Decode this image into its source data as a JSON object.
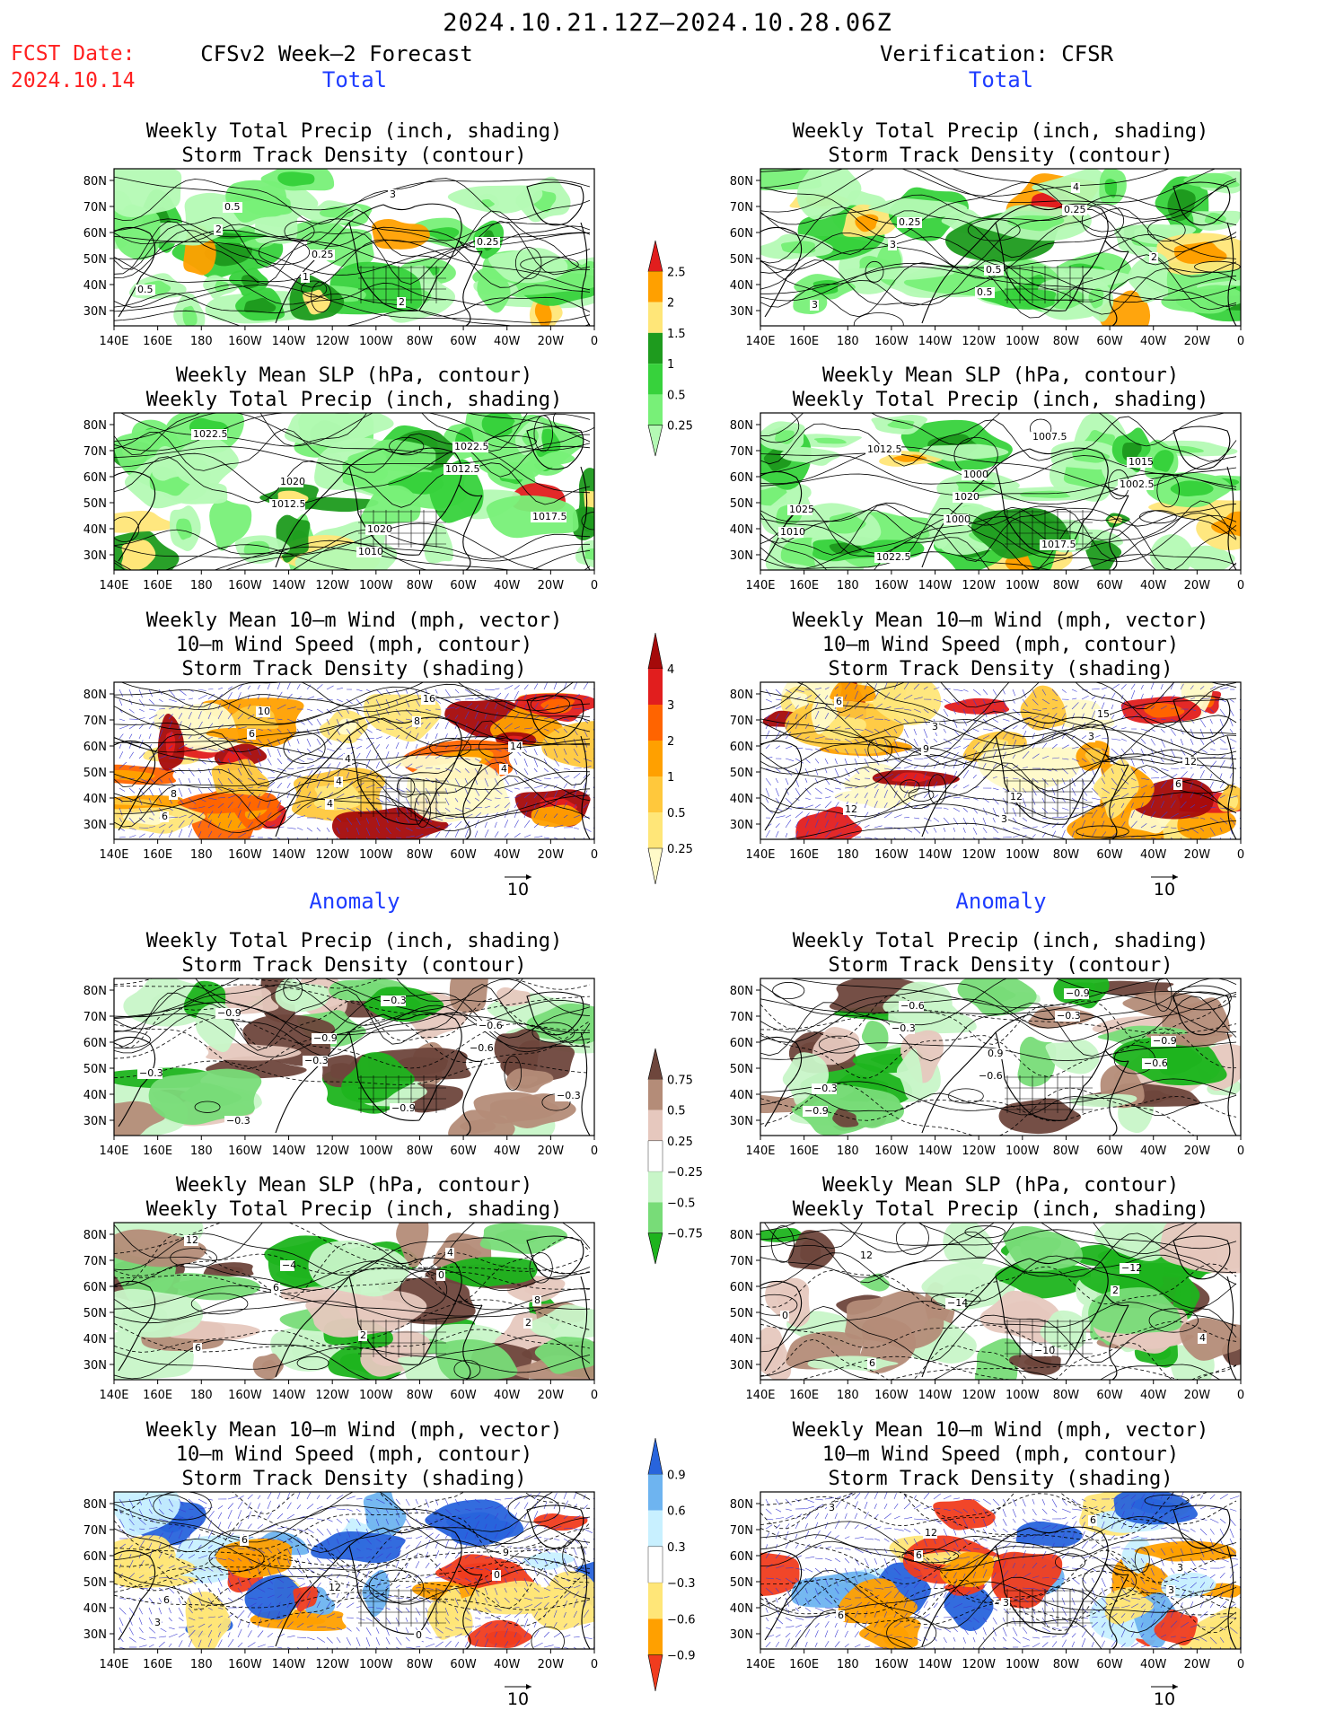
{
  "header": {
    "main_title": "2024.10.21.12Z–2024.10.28.06Z",
    "fcst_label": "FCST Date:",
    "fcst_date": "2024.10.14",
    "left_title": "CFSv2 Week–2 Forecast",
    "right_title": "Verification: CFSR"
  },
  "sections": {
    "total": "Total",
    "anomaly": "Anomaly"
  },
  "panel_titles": {
    "precip_storm": [
      "Weekly Total Precip (inch, shading)",
      "Storm Track Density (contour)"
    ],
    "slp_precip": [
      "Weekly Mean SLP (hPa, contour)",
      "Weekly Total Precip (inch, shading)"
    ],
    "wind_storm": [
      "Weekly Mean 10–m Wind (mph, vector)",
      "10–m Wind Speed (mph, contour)",
      "Storm Track Density (shading)"
    ]
  },
  "axes": {
    "lat_labels": [
      "80N",
      "70N",
      "60N",
      "50N",
      "40N",
      "30N"
    ],
    "lon_labels": [
      "140E",
      "160E",
      "180",
      "160W",
      "140W",
      "120W",
      "100W",
      "80W",
      "60W",
      "40W",
      "20W",
      "0"
    ]
  },
  "vector_ref": "10",
  "colorbars": {
    "precip_total": {
      "labels": [
        "0.25",
        "0.5",
        "1",
        "1.5",
        "2",
        "2.5"
      ],
      "colors": [
        "#b4fab4",
        "#78f078",
        "#37d23c",
        "#1e9b1e",
        "#ffe678",
        "#ffa000",
        "#e11e1e"
      ]
    },
    "storm_total": {
      "labels": [
        "0.25",
        "0.5",
        "1",
        "2",
        "3",
        "4"
      ],
      "colors": [
        "#fffac8",
        "#ffe678",
        "#ffc83c",
        "#ffa000",
        "#ff6400",
        "#e11e1e",
        "#a50a0a"
      ]
    },
    "precip_anom": {
      "labels": [
        "0.75",
        "0.5",
        "0.25",
        "−0.25",
        "−0.5",
        "−0.75"
      ],
      "colors": [
        "#1eb41e",
        "#78dc78",
        "#c8f5c8",
        "#ffffff",
        "#e6c8be",
        "#b48c78",
        "#6e463c"
      ]
    },
    "storm_anom": {
      "labels": [
        "0.9",
        "0.6",
        "0.3",
        "−0.3",
        "−0.6",
        "−0.9"
      ],
      "colors": [
        "#f03c1e",
        "#ffa000",
        "#ffe678",
        "#ffffff",
        "#c8f0ff",
        "#6eb4f0",
        "#2864dc"
      ]
    }
  },
  "contour_labels": {
    "fc_precip_total": [
      "2",
      "1",
      "3",
      "0.25",
      "0.5",
      "0.5",
      "0.25",
      "2"
    ],
    "ver_precip_total": [
      "3",
      "0.5",
      "0.25",
      "2",
      "3",
      "0.25",
      "0.5",
      "4"
    ],
    "fc_slp_total": [
      "1012.5",
      "1010",
      "1012.5",
      "1017.5",
      "1022.5",
      "1020",
      "1020",
      "1022.5"
    ],
    "ver_slp_total": [
      "1000",
      "1007.5",
      "1002.5",
      "1010",
      "1012.5",
      "1020",
      "1017.5",
      "1015",
      "1025",
      "1022.5",
      "1000"
    ],
    "fc_wind_total": [
      "4",
      "8",
      "4",
      "6",
      "6",
      "4",
      "16",
      "14",
      "8",
      "10",
      "4"
    ],
    "ver_wind_total": [
      "3",
      "3",
      "6",
      "6",
      "9",
      "12",
      "15",
      "12",
      "12",
      "3"
    ],
    "fc_precip_anom": [
      "−0.3",
      "−0.6",
      "−0.3",
      "−0.9",
      "−0.3",
      "−0.9",
      "−0.6",
      "−0.3",
      "−0.3",
      "−0.9"
    ],
    "ver_precip_anom": [
      "−0.3",
      "−0.6",
      "−0.9",
      "−0.3",
      "−0.6",
      "−0.9",
      "−0.9",
      "−0.3",
      "−0.6",
      "0.9"
    ],
    "fc_slp_anom": [
      "0",
      "2",
      "12",
      "6",
      "2",
      "4",
      "8",
      "6",
      "−4"
    ],
    "ver_slp_anom": [
      "2",
      "4",
      "12",
      "−14",
      "−10",
      "−12",
      "0",
      "6"
    ],
    "fc_wind_anom": [
      "0",
      "3",
      "6",
      "12",
      "0",
      "9",
      "6"
    ],
    "ver_wind_anom": [
      "3",
      "3",
      "6",
      "3",
      "6",
      "3",
      "6",
      "12"
    ]
  }
}
